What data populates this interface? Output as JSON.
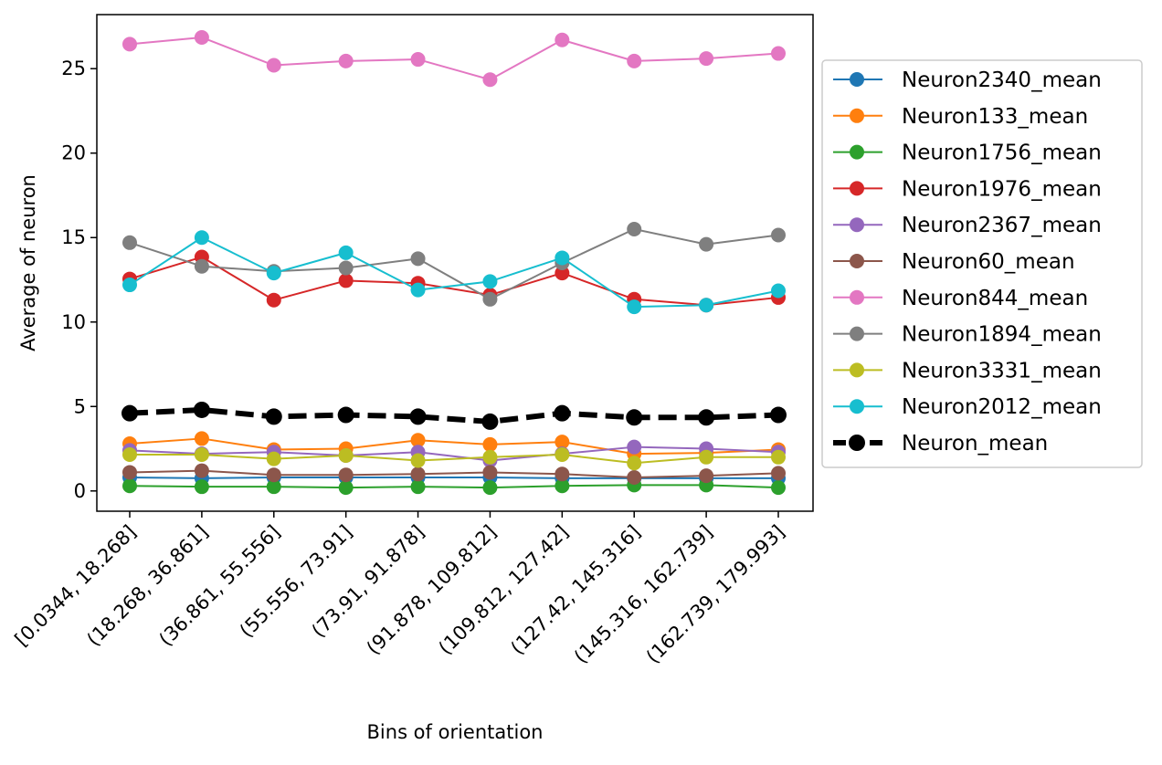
{
  "chart_data": {
    "type": "line",
    "xlabel": "Bins of orientation",
    "ylabel": "Average of neuron",
    "categories": [
      "[0.0344,  18.268]",
      "(18.268, 36.861]",
      "(36.861, 55.556]",
      "(55.556, 73.91]",
      "(73.91, 91.878]",
      "(91.878, 109.812]",
      "(109.812, 127.42]",
      "(127.42, 145.316]",
      "(145.316, 162.739]",
      "(162.739, 179.993]"
    ],
    "ylim": [
      -1.2,
      28.2
    ],
    "yticks": [
      0,
      5,
      10,
      15,
      20,
      25
    ],
    "grid": false,
    "legend_position": "right, outside plot",
    "series": [
      {
        "name": "Neuron2340_mean",
        "color": "#1f77b4",
        "style": "solid",
        "values": [
          0.8,
          0.75,
          0.8,
          0.8,
          0.8,
          0.8,
          0.75,
          0.75,
          0.75,
          0.75
        ]
      },
      {
        "name": "Neuron133_mean",
        "color": "#ff7f0e",
        "style": "solid",
        "values": [
          2.8,
          3.1,
          2.45,
          2.5,
          3.0,
          2.75,
          2.9,
          2.2,
          2.25,
          2.45
        ]
      },
      {
        "name": "Neuron1756_mean",
        "color": "#2ca02c",
        "style": "solid",
        "values": [
          0.3,
          0.25,
          0.25,
          0.2,
          0.25,
          0.2,
          0.3,
          0.35,
          0.35,
          0.2
        ]
      },
      {
        "name": "Neuron1976_mean",
        "color": "#d62728",
        "style": "solid",
        "values": [
          12.55,
          13.85,
          11.3,
          12.45,
          12.3,
          11.6,
          12.9,
          11.35,
          11.0,
          11.45
        ]
      },
      {
        "name": "Neuron2367_mean",
        "color": "#9467bd",
        "style": "solid",
        "values": [
          2.4,
          2.2,
          2.3,
          2.1,
          2.3,
          1.8,
          2.2,
          2.6,
          2.5,
          2.3
        ]
      },
      {
        "name": "Neuron60_mean",
        "color": "#8c564b",
        "style": "solid",
        "values": [
          1.1,
          1.2,
          0.95,
          0.95,
          1.0,
          1.1,
          1.0,
          0.8,
          0.9,
          1.05
        ]
      },
      {
        "name": "Neuron844_mean",
        "color": "#e377c2",
        "style": "solid",
        "values": [
          26.45,
          26.85,
          25.2,
          25.45,
          25.55,
          24.35,
          26.7,
          25.45,
          25.6,
          25.9
        ]
      },
      {
        "name": "Neuron1894_mean",
        "color": "#7f7f7f",
        "style": "solid",
        "values": [
          14.7,
          13.3,
          13.0,
          13.2,
          13.75,
          11.35,
          13.5,
          15.5,
          14.6,
          15.15
        ]
      },
      {
        "name": "Neuron3331_mean",
        "color": "#bcbd22",
        "style": "solid",
        "values": [
          2.15,
          2.15,
          1.9,
          2.1,
          1.8,
          2.0,
          2.15,
          1.65,
          2.0,
          2.0
        ]
      },
      {
        "name": "Neuron2012_mean",
        "color": "#17becf",
        "style": "solid",
        "values": [
          12.2,
          15.0,
          12.9,
          14.1,
          11.9,
          12.4,
          13.8,
          10.9,
          11.0,
          11.85
        ]
      },
      {
        "name": "Neuron_mean",
        "color": "#000000",
        "style": "dashed",
        "values": [
          4.6,
          4.8,
          4.4,
          4.5,
          4.4,
          4.1,
          4.6,
          4.35,
          4.35,
          4.5
        ]
      }
    ]
  }
}
